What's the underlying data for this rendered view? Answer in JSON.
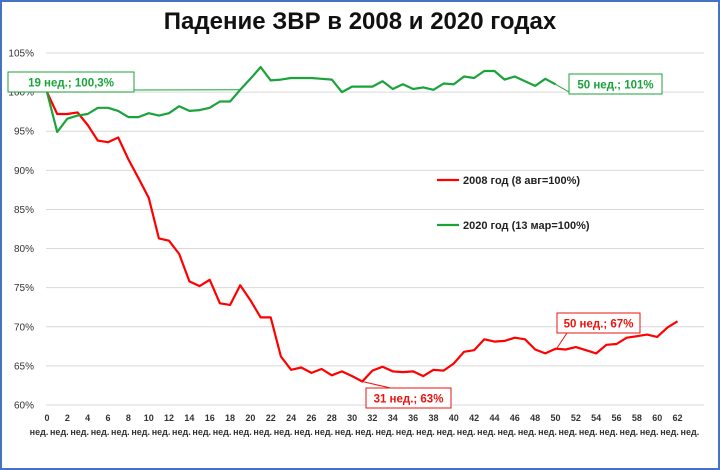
{
  "chart_data": {
    "type": "line",
    "title": "Падение ЗВР в 2008 и 2020 годах",
    "ylim": [
      60,
      105
    ],
    "yticks": [
      60,
      65,
      70,
      75,
      80,
      85,
      90,
      95,
      100,
      105
    ],
    "ytick_labels": [
      "60%",
      "65%",
      "70%",
      "75%",
      "80%",
      "85%",
      "90%",
      "95%",
      "100%",
      "105%"
    ],
    "xlim": [
      0,
      63
    ],
    "xtick_numbers": [
      "0",
      "2",
      "4",
      "6",
      "8",
      "10",
      "12",
      "14",
      "16",
      "18",
      "20",
      "22",
      "24",
      "26",
      "28",
      "30",
      "32",
      "34",
      "36",
      "38",
      "40",
      "42",
      "44",
      "46",
      "48",
      "50",
      "52",
      "54",
      "56",
      "58",
      "60",
      "62"
    ],
    "xtick_unit": "нед.",
    "grid": true,
    "legend_position": "center-right",
    "series": [
      {
        "name": "2008 год (8 авг=100%)",
        "color": "#ff0000",
        "x": [
          0,
          1,
          2,
          3,
          4,
          5,
          6,
          7,
          8,
          9,
          10,
          11,
          12,
          13,
          14,
          15,
          16,
          17,
          18,
          19,
          20,
          21,
          22,
          23,
          24,
          25,
          26,
          27,
          28,
          29,
          30,
          31,
          32,
          33,
          34,
          35,
          36,
          37,
          38,
          39,
          40,
          41,
          42,
          43,
          44,
          45,
          46,
          47,
          48,
          49,
          50,
          51,
          52,
          53,
          54,
          55,
          56,
          57,
          58,
          59,
          60,
          61,
          62
        ],
        "values": [
          100,
          97.2,
          97.2,
          97.4,
          95.8,
          93.8,
          93.6,
          94.2,
          91.4,
          89,
          86.5,
          81.3,
          81,
          79.3,
          75.8,
          75.2,
          76,
          73,
          72.8,
          75.3,
          73.4,
          71.2,
          71.2,
          66.2,
          64.5,
          64.8,
          64.1,
          64.6,
          63.8,
          64.3,
          63.7,
          63,
          64.4,
          64.9,
          64.3,
          64.2,
          64.3,
          63.7,
          64.5,
          64.4,
          65.3,
          66.8,
          67,
          68.4,
          68.1,
          68.2,
          68.6,
          68.4,
          67.1,
          66.6,
          67.2,
          67.1,
          67.4,
          67,
          66.6,
          67.7,
          67.8,
          68.6,
          68.8,
          69,
          68.7,
          69.9,
          70.7
        ]
      },
      {
        "name": "2020 год (13 мар=100%)",
        "color": "#1aa33a",
        "x": [
          0,
          1,
          2,
          3,
          4,
          5,
          6,
          7,
          8,
          9,
          10,
          11,
          12,
          13,
          14,
          15,
          16,
          17,
          18,
          19,
          20,
          21,
          22,
          23,
          24,
          25,
          26,
          27,
          28,
          29,
          30,
          31,
          32,
          33,
          34,
          35,
          36,
          37,
          38,
          39,
          40,
          41,
          42,
          43,
          44,
          45,
          46,
          47,
          48,
          49,
          50
        ],
        "values": [
          100,
          94.9,
          96.6,
          97,
          97.2,
          98,
          98,
          97.6,
          96.8,
          96.8,
          97.3,
          97,
          97.3,
          98.2,
          97.6,
          97.7,
          98,
          98.8,
          98.8,
          100.3,
          101.7,
          103.2,
          101.5,
          101.6,
          101.8,
          101.8,
          101.8,
          101.7,
          101.6,
          100,
          100.7,
          100.7,
          100.7,
          101.4,
          100.4,
          101,
          100.4,
          100.6,
          100.3,
          101.1,
          101,
          102,
          101.8,
          102.7,
          102.7,
          101.6,
          102,
          101.4,
          100.8,
          101.7,
          101
        ]
      }
    ],
    "annotations": [
      {
        "text": "19 нед.; 100,3%",
        "series": "2020 год (13 мар=100%)",
        "x": 19,
        "y": 100.3
      },
      {
        "text": "50 нед.; 101%",
        "series": "2020 год (13 мар=100%)",
        "x": 50,
        "y": 101
      },
      {
        "text": "31 нед.; 63%",
        "series": "2008 год (8 авг=100%)",
        "x": 31,
        "y": 63
      },
      {
        "text": "50 нед.; 67%",
        "series": "2008 год (8 авг=100%)",
        "x": 50,
        "y": 67
      }
    ]
  }
}
